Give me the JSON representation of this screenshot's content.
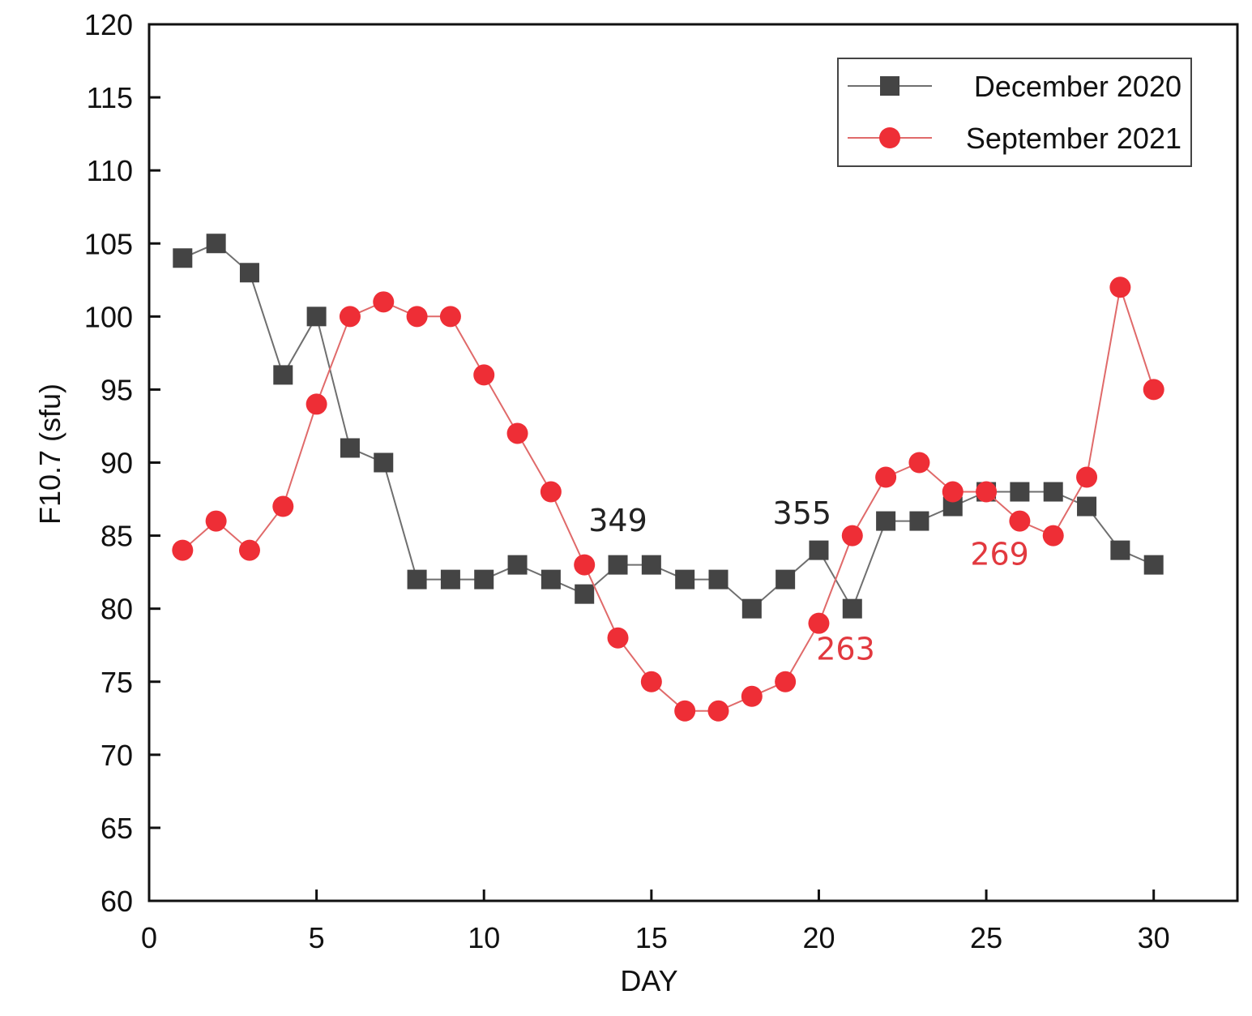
{
  "chart_data": {
    "type": "line",
    "title": "",
    "xlabel": "DAY",
    "ylabel": "F10.7 (sfu)",
    "xlim": [
      0,
      32.5
    ],
    "ylim": [
      60,
      120
    ],
    "xticks": [
      0,
      5,
      10,
      15,
      20,
      25,
      30
    ],
    "yticks": [
      60,
      65,
      70,
      75,
      80,
      85,
      90,
      95,
      100,
      105,
      110,
      115,
      120
    ],
    "grid": false,
    "legend_position": "top-right",
    "series": [
      {
        "name": "December 2020",
        "marker": "square",
        "color": "#444444",
        "line_color": "#6f6f6f",
        "x": [
          1,
          2,
          3,
          4,
          5,
          6,
          7,
          8,
          9,
          10,
          11,
          12,
          13,
          14,
          15,
          16,
          17,
          18,
          19,
          20,
          21,
          22,
          23,
          24,
          25,
          26,
          27,
          28,
          29,
          30
        ],
        "values": [
          104,
          105,
          103,
          96,
          100,
          91,
          90,
          82,
          82,
          82,
          83,
          82,
          81,
          83,
          83,
          82,
          82,
          80,
          82,
          84,
          80,
          86,
          86,
          87,
          88,
          88,
          88,
          87,
          84,
          83
        ]
      },
      {
        "name": "September 2021",
        "marker": "circle",
        "color": "#ee2e36",
        "line_color": "#e06a6a",
        "x": [
          1,
          2,
          3,
          4,
          5,
          6,
          7,
          8,
          9,
          10,
          11,
          12,
          13,
          14,
          15,
          16,
          17,
          18,
          19,
          20,
          21,
          22,
          23,
          24,
          25,
          26,
          27,
          28,
          29,
          30
        ],
        "values": [
          84,
          86,
          84,
          87,
          94,
          100,
          101,
          100,
          100,
          96,
          92,
          88,
          83,
          78,
          75,
          73,
          73,
          74,
          75,
          79,
          85,
          89,
          90,
          88,
          88,
          86,
          85,
          89,
          102,
          95
        ]
      }
    ],
    "annotations": [
      {
        "text": "349",
        "x": 14.0,
        "y": 85.3,
        "color": "#222222"
      },
      {
        "text": "355",
        "x": 19.5,
        "y": 85.8,
        "color": "#222222"
      },
      {
        "text": "263",
        "x": 20.8,
        "y": 76.5,
        "color": "#e2393f"
      },
      {
        "text": "269",
        "x": 25.4,
        "y": 83.0,
        "color": "#e2393f"
      }
    ]
  }
}
